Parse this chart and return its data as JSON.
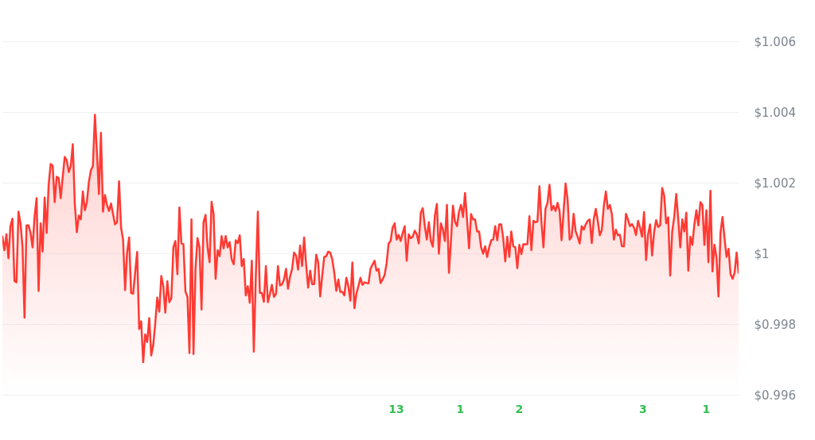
{
  "chart_data": {
    "type": "area",
    "categories": [
      null,
      null,
      null,
      null,
      null,
      null,
      null,
      null,
      null,
      null,
      null,
      null,
      null,
      null,
      null,
      null,
      null,
      null,
      null,
      null,
      null,
      null,
      null,
      null,
      null,
      null,
      null,
      null,
      null,
      null,
      null,
      null,
      null,
      null,
      null,
      null,
      null,
      null,
      null,
      null,
      null,
      null,
      null,
      null,
      null,
      null,
      null,
      null,
      null,
      null,
      null,
      null,
      null,
      null,
      null,
      null,
      null,
      null,
      null,
      null,
      null,
      null,
      null,
      null,
      null,
      null,
      null,
      null,
      null,
      null,
      null,
      null,
      null,
      null,
      null,
      null,
      null,
      null,
      null,
      null,
      null,
      null,
      null,
      null,
      null,
      null,
      null,
      null,
      null,
      null,
      null,
      null,
      null,
      null,
      null,
      null,
      null,
      null,
      null,
      null,
      null,
      null,
      null,
      null,
      null,
      null,
      null,
      null,
      null,
      null,
      null,
      null,
      null,
      null,
      null,
      null,
      null,
      null,
      null,
      null,
      null,
      null,
      null,
      null,
      null,
      null,
      null,
      null,
      null,
      null,
      null,
      null,
      null,
      null,
      null,
      null,
      null,
      null,
      null,
      null,
      null,
      null,
      null,
      null,
      null,
      null,
      null,
      null,
      null,
      null,
      null,
      null,
      null,
      null,
      null,
      null,
      null,
      null,
      null,
      null,
      null,
      null,
      null,
      null,
      null,
      null,
      null,
      null,
      null,
      null,
      null,
      null,
      null,
      null,
      null,
      null,
      null,
      null,
      null,
      null,
      null,
      null,
      null,
      null,
      null,
      null,
      null,
      null,
      null,
      null,
      null,
      null,
      null,
      null,
      null,
      null,
      null,
      null,
      null,
      null,
      null,
      null,
      null,
      null,
      null,
      null,
      null,
      null,
      null,
      null,
      null,
      null,
      null,
      null,
      null,
      null,
      null,
      null,
      null,
      null,
      null,
      null,
      null,
      null,
      null,
      null,
      null,
      null,
      null,
      null,
      null,
      null,
      null,
      null,
      null,
      null,
      null,
      null,
      null,
      null,
      null,
      null,
      null,
      null,
      null,
      null,
      null,
      null,
      null,
      null,
      null,
      null,
      null,
      null,
      null,
      null,
      null,
      null,
      null,
      null,
      null,
      null,
      null,
      null,
      null,
      null,
      null,
      null,
      null,
      null,
      null,
      null,
      null,
      null,
      null,
      null,
      null,
      null,
      null,
      null,
      null,
      null,
      null,
      null,
      null,
      null,
      null,
      null,
      null,
      null,
      null,
      null,
      null,
      null,
      null,
      null,
      null,
      null,
      null,
      null,
      null,
      null,
      null,
      null,
      null,
      null,
      null,
      null,
      null,
      null,
      null,
      null,
      null,
      null,
      null,
      null,
      null,
      null,
      null,
      null,
      null,
      null,
      null,
      null,
      null,
      null,
      null,
      null,
      null,
      null,
      null,
      null,
      null,
      null,
      null,
      null,
      null,
      null,
      null,
      null,
      null,
      null,
      null,
      null,
      null,
      null,
      null,
      null,
      null,
      null,
      null,
      null,
      null,
      null,
      null,
      null,
      null,
      null,
      null,
      null,
      null,
      null,
      null,
      null,
      null,
      null,
      null
    ],
    "series": [
      {
        "color": "#ff3a33",
        "values": [
          1.00048,
          1.00009,
          1.00054,
          0.99986,
          1.00077,
          1.00098,
          0.99922,
          0.99918,
          1.00118,
          1.00085,
          1.0002,
          0.99818,
          1.00079,
          1.00079,
          1.00058,
          1.00017,
          1.00103,
          1.00156,
          0.99894,
          1.00085,
          1.00005,
          1.00158,
          1.00058,
          1.00194,
          1.00253,
          1.00248,
          1.00145,
          1.00217,
          1.00213,
          1.00156,
          1.00217,
          1.00273,
          1.00263,
          1.0023,
          1.00247,
          1.00309,
          1.00141,
          1.0006,
          1.00107,
          1.00096,
          1.00175,
          1.00122,
          1.00145,
          1.00202,
          1.00235,
          1.00247,
          1.00392,
          1.00285,
          1.00168,
          1.00341,
          1.00118,
          1.00165,
          1.00137,
          1.0012,
          1.00141,
          1.00111,
          1.00082,
          1.00088,
          1.00204,
          1.00073,
          1.00039,
          0.99896,
          1.00002,
          1.00045,
          0.99888,
          0.99886,
          0.99945,
          1.00004,
          0.99786,
          0.99808,
          0.99692,
          0.99771,
          0.99749,
          0.99817,
          0.99711,
          0.99741,
          0.99802,
          0.99875,
          0.99835,
          0.99936,
          0.99907,
          0.99832,
          0.99921,
          0.99862,
          0.99873,
          1.00017,
          1.00035,
          0.99941,
          1.0013,
          1.00028,
          1.00026,
          0.99892,
          0.99877,
          0.99718,
          1.00096,
          0.99715,
          0.99956,
          1.00043,
          1.00017,
          0.99841,
          1.00088,
          1.00109,
          1.00017,
          0.99975,
          1.00146,
          1.00111,
          0.99928,
          1.00009,
          0.99992,
          1.00049,
          1.00014,
          1.00049,
          1.00017,
          1.00032,
          0.99983,
          0.99969,
          1.00037,
          1.00029,
          1.00051,
          0.99964,
          0.99984,
          0.99881,
          0.99907,
          0.9986,
          0.99979,
          0.99722,
          0.99937,
          1.00118,
          0.99888,
          0.99888,
          0.99863,
          0.99964,
          0.99862,
          0.99885,
          0.99911,
          0.99877,
          0.99885,
          0.99964,
          0.99909,
          0.99912,
          0.99926,
          0.99956,
          0.999,
          0.99934,
          0.99955,
          1.00002,
          0.99994,
          0.99954,
          1.00022,
          0.99964,
          1.00045,
          0.99968,
          0.99903,
          0.99951,
          0.99913,
          0.99913,
          0.99996,
          0.99975,
          0.99878,
          0.99937,
          0.9999,
          0.99992,
          1.00005,
          1.00002,
          0.99983,
          0.99945,
          0.99894,
          0.99926,
          0.99891,
          0.99891,
          0.99881,
          0.99931,
          0.99907,
          0.99866,
          0.99974,
          0.99845,
          0.99886,
          0.99907,
          0.99931,
          0.99911,
          0.99918,
          0.99916,
          0.99915,
          0.99956,
          0.99968,
          0.99979,
          0.99951,
          0.99956,
          0.99916,
          0.99926,
          0.99939,
          0.99971,
          1.00028,
          1.00035,
          1.00073,
          1.00085,
          1.00039,
          1.00052,
          1.00035,
          1.00057,
          1.00077,
          0.99979,
          1.00054,
          1.00043,
          1.00047,
          1.00064,
          1.00054,
          1.00028,
          1.00115,
          1.00128,
          1.00077,
          1.00039,
          1.00088,
          1.00035,
          1.00019,
          1.00107,
          1.0014,
          0.99999,
          1.00085,
          1.00067,
          1.00035,
          1.00137,
          0.99945,
          1.00035,
          1.00135,
          1.0009,
          1.00077,
          1.00118,
          1.00137,
          1.00103,
          1.00171,
          1.00096,
          1.00014,
          1.00111,
          1.00096,
          1.00096,
          1.00062,
          1.00062,
          1.00017,
          0.99999,
          1.0002,
          0.9999,
          1.00017,
          1.00037,
          1.00039,
          1.00077,
          1.00037,
          1.00082,
          1.00082,
          1.00042,
          0.99977,
          1.00047,
          0.9999,
          1.00062,
          1.0002,
          1.00017,
          0.99958,
          1.00024,
          0.99998,
          1.00026,
          1.00026,
          1.00026,
          1.00105,
          1.00009,
          1.00092,
          1.00088,
          1.0009,
          1.0019,
          1.00088,
          1.00017,
          1.00126,
          1.00143,
          1.00194,
          1.00122,
          1.00134,
          1.0012,
          1.00143,
          1.0012,
          1.00037,
          1.00118,
          1.00198,
          1.00152,
          1.00039,
          1.00047,
          1.00112,
          1.00062,
          1.00047,
          1.00028,
          1.00077,
          1.00067,
          1.00082,
          1.00092,
          1.00096,
          1.00029,
          1.00096,
          1.00126,
          1.00092,
          1.00051,
          1.00066,
          1.00134,
          1.00175,
          1.00126,
          1.00137,
          1.00111,
          1.00039,
          1.00067,
          1.00051,
          1.00053,
          1.0002,
          1.0002,
          1.00112,
          1.00096,
          1.00077,
          1.00083,
          1.00073,
          1.00052,
          1.00092,
          1.00073,
          1.00047,
          1.00117,
          0.99981,
          1.00054,
          1.00082,
          0.99994,
          1.0006,
          1.00094,
          1.00075,
          1.00079,
          1.00185,
          1.00164,
          1.00085,
          1.00102,
          0.99937,
          1.00062,
          1.00103,
          1.00168,
          1.00096,
          1.00017,
          1.00096,
          1.00062,
          1.00115,
          0.99951,
          1.00047,
          1.00024,
          1.00081,
          1.00122,
          1.00079,
          1.00145,
          1.00137,
          1.00024,
          1.00122,
          0.99975,
          1.00177,
          0.99949,
          1.00024,
          0.9999,
          0.99878,
          1.00058,
          1.00103,
          1.00043,
          0.9999,
          1.00013,
          0.99941,
          0.99928,
          0.99945,
          1.00002,
          0.99945
        ]
      }
    ],
    "ylim": [
      0.996,
      1.006
    ],
    "yticks": [
      {
        "value": 0.996,
        "label": "$0.996"
      },
      {
        "value": 0.998,
        "label": "$0.998"
      },
      {
        "value": 1,
        "label": "$1"
      },
      {
        "value": 1.002,
        "label": "$1.002"
      },
      {
        "value": 1.004,
        "label": "$1.004"
      },
      {
        "value": 1.006,
        "label": "$1.006"
      }
    ],
    "grid": "y",
    "tick_labels": "y",
    "annotations": [
      "13",
      "1",
      "2",
      "3",
      "1"
    ]
  }
}
